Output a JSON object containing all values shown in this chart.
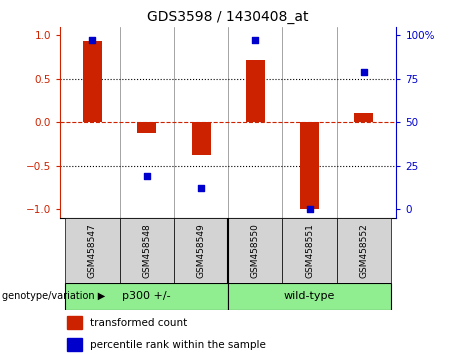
{
  "title": "GDS3598 / 1430408_at",
  "samples": [
    "GSM458547",
    "GSM458548",
    "GSM458549",
    "GSM458550",
    "GSM458551",
    "GSM458552"
  ],
  "bar_values": [
    0.93,
    -0.13,
    -0.38,
    0.72,
    -1.0,
    0.1
  ],
  "scatter_percentile": [
    97,
    19,
    12,
    97,
    0,
    79
  ],
  "group_labels": [
    "p300 +/-",
    "wild-type"
  ],
  "group_splits": [
    3
  ],
  "group_label": "genotype/variation",
  "ylim": [
    -1.1,
    1.1
  ],
  "yticks_left": [
    -1,
    -0.5,
    0,
    0.5,
    1
  ],
  "yticks_right": [
    0,
    25,
    50,
    75,
    100
  ],
  "bar_color": "#CC2200",
  "scatter_color": "#0000CC",
  "zero_line_color": "#CC2200",
  "dotted_line_color": "#000000",
  "legend_bar_label": "transformed count",
  "legend_scatter_label": "percentile rank within the sample",
  "sample_box_color": "#D3D3D3",
  "group_box_color": "#90EE90"
}
